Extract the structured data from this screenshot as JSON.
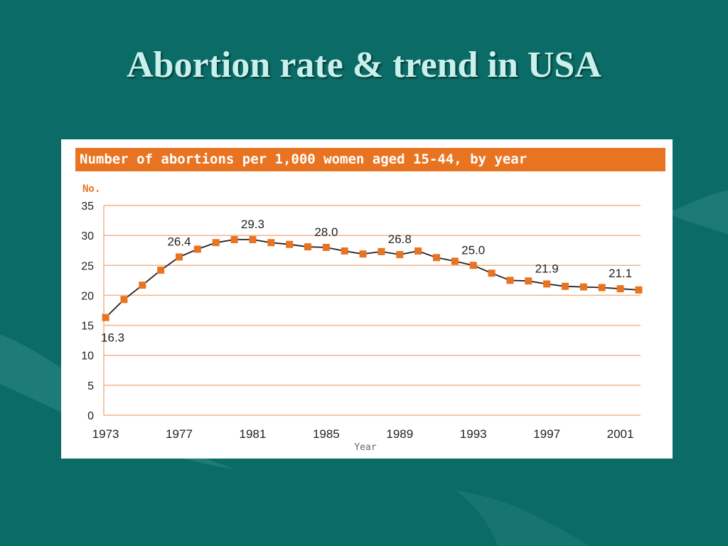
{
  "slide": {
    "title": "Abortion rate & trend in USA"
  },
  "chart_data": {
    "type": "line",
    "title": "Number of abortions per 1,000 women aged 15-44, by year",
    "ylabel": "No.",
    "xlabel": "Year",
    "ylim": [
      0,
      35
    ],
    "y_ticks": [
      0,
      5,
      10,
      15,
      20,
      25,
      30,
      35
    ],
    "x_tick_labels": [
      "1973",
      "1977",
      "1981",
      "1985",
      "1989",
      "1993",
      "1997",
      "2001"
    ],
    "grid": true,
    "line_color": "#222222",
    "marker_color": "#e87422",
    "series": [
      {
        "x": [
          1973,
          1974,
          1975,
          1976,
          1977,
          1978,
          1979,
          1980,
          1981,
          1982,
          1983,
          1984,
          1985,
          1986,
          1987,
          1988,
          1989,
          1990,
          1991,
          1992,
          1993,
          1994,
          1995,
          1996,
          1997,
          1998,
          1999,
          2000,
          2001,
          2002
        ],
        "values": [
          16.3,
          19.3,
          21.7,
          24.2,
          26.4,
          27.7,
          28.8,
          29.3,
          29.3,
          28.8,
          28.5,
          28.1,
          28.0,
          27.4,
          26.9,
          27.3,
          26.8,
          27.4,
          26.3,
          25.7,
          25.0,
          23.7,
          22.5,
          22.4,
          21.9,
          21.5,
          21.4,
          21.3,
          21.1,
          20.9
        ]
      }
    ],
    "data_labels": [
      {
        "year": 1973,
        "text": "16.3",
        "position": "below"
      },
      {
        "year": 1977,
        "text": "26.4",
        "position": "above"
      },
      {
        "year": 1981,
        "text": "29.3",
        "position": "above"
      },
      {
        "year": 1985,
        "text": "28.0",
        "position": "above"
      },
      {
        "year": 1989,
        "text": "26.8",
        "position": "above"
      },
      {
        "year": 1993,
        "text": "25.0",
        "position": "above"
      },
      {
        "year": 1997,
        "text": "21.9",
        "position": "above"
      },
      {
        "year": 2001,
        "text": "21.1",
        "position": "above"
      }
    ]
  }
}
